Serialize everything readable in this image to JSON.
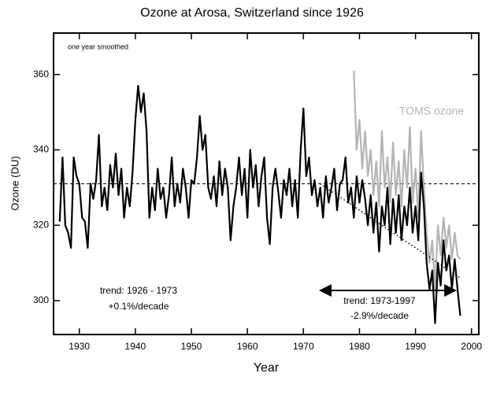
{
  "chart_data": {
    "type": "line",
    "title": "Ozone at Arosa, Switzerland since 1926",
    "x_label": "Year",
    "y_label": "Ozone (DU)",
    "xlim": [
      1925.4,
      2001.3
    ],
    "ylim": [
      291,
      371
    ],
    "xticks": [
      1930,
      1940,
      1950,
      1960,
      1970,
      1980,
      1990,
      2000
    ],
    "yticks": [
      300,
      320,
      340,
      360
    ],
    "series": [
      {
        "color": "#000000",
        "x": [
          1926.5,
          1927,
          1927.5,
          1928,
          1928.5,
          1929,
          1929.5,
          1930,
          1930.5,
          1931,
          1931.5,
          1932,
          1932.5,
          1933,
          1933.5,
          1934,
          1934.5,
          1935,
          1935.5,
          1936,
          1936.5,
          1937,
          1937.5,
          1938,
          1938.5,
          1939,
          1939.5,
          1940,
          1940.5,
          1941,
          1941.5,
          1942,
          1942.5,
          1943,
          1943.5,
          1944,
          1944.5,
          1945,
          1945.5,
          1946,
          1946.5,
          1947,
          1947.5,
          1948,
          1948.5,
          1949,
          1949.5,
          1950,
          1950.5,
          1951,
          1951.5,
          1952,
          1952.5,
          1953,
          1953.5,
          1954,
          1954.5,
          1955,
          1955.5,
          1956,
          1956.5,
          1957,
          1957.5,
          1958,
          1958.5,
          1959,
          1959.5,
          1960,
          1960.5,
          1961,
          1961.5,
          1962,
          1962.5,
          1963,
          1963.5,
          1964,
          1964.5,
          1965,
          1965.5,
          1966,
          1966.5,
          1967,
          1967.5,
          1968,
          1968.5,
          1969,
          1969.5,
          1970,
          1970.5,
          1971,
          1971.5,
          1972,
          1972.5,
          1973,
          1973.5,
          1974,
          1974.5,
          1975,
          1975.5,
          1976,
          1976.5,
          1977,
          1977.5,
          1978,
          1978.5,
          1979,
          1979.5,
          1980,
          1980.5,
          1981,
          1981.5,
          1982,
          1982.5,
          1983,
          1983.5,
          1984,
          1984.5,
          1985,
          1985.5,
          1986,
          1986.5,
          1987,
          1987.5,
          1988,
          1988.5,
          1989,
          1989.5,
          1990,
          1990.5,
          1991,
          1991.5,
          1992,
          1992.5,
          1993,
          1993.5,
          1994,
          1994.5,
          1995,
          1995.5,
          1996,
          1996.5,
          1997,
          1997.5,
          1998
        ],
        "values": [
          321,
          338,
          320,
          318,
          314,
          338,
          333,
          331,
          322,
          321,
          314,
          331,
          327,
          332,
          344,
          325,
          330,
          324,
          336,
          330,
          339,
          328,
          335,
          322,
          330,
          325,
          334,
          348,
          357,
          350,
          355,
          345,
          322,
          330,
          324,
          335,
          327,
          330,
          322,
          328,
          338,
          325,
          331,
          326,
          335,
          330,
          322,
          332,
          331,
          338,
          349,
          340,
          344,
          330,
          327,
          333,
          325,
          337,
          328,
          335,
          330,
          316,
          325,
          330,
          338,
          328,
          335,
          322,
          340,
          330,
          336,
          325,
          333,
          338,
          322,
          315,
          330,
          335,
          329,
          322,
          332,
          328,
          335,
          325,
          332,
          322,
          340,
          351,
          333,
          338,
          328,
          332,
          325,
          330,
          322,
          333,
          326,
          330,
          335,
          324,
          331,
          332,
          338,
          326,
          330,
          322,
          333,
          326,
          332,
          327,
          320,
          328,
          318,
          326,
          313,
          325,
          320,
          330,
          315,
          327,
          318,
          328,
          316,
          325,
          320,
          330,
          318,
          325,
          316,
          334,
          325,
          310,
          303,
          308,
          294,
          310,
          304,
          316,
          308,
          312,
          303,
          311,
          303,
          296
        ]
      },
      {
        "name": "TOMS ozone",
        "color": "#b4b4b4",
        "x": [
          1979,
          1979.5,
          1980,
          1980.5,
          1981,
          1981.5,
          1982,
          1982.5,
          1983,
          1983.5,
          1984,
          1984.5,
          1985,
          1985.5,
          1986,
          1986.5,
          1987,
          1987.5,
          1988,
          1988.5,
          1989,
          1989.5,
          1990,
          1990.5,
          1991,
          1991.5,
          1992,
          1992.5,
          1993,
          1993.5,
          1994,
          1994.5,
          1995,
          1995.5,
          1996,
          1996.5,
          1997,
          1997.5,
          1998
        ],
        "values": [
          361,
          340,
          348,
          335,
          345,
          333,
          340,
          328,
          337,
          325,
          345,
          330,
          338,
          326,
          342,
          328,
          337,
          325,
          340,
          330,
          346,
          326,
          335,
          322,
          345,
          330,
          318,
          310,
          316,
          303,
          320,
          312,
          322,
          314,
          320,
          311,
          318,
          312,
          311
        ]
      }
    ],
    "mean_line": 331,
    "trend_line": {
      "x": [
        1973,
        1998
      ],
      "values": [
        331,
        306
      ]
    },
    "annotations": [
      "one year smoothed",
      "trend: 1926 - 1973",
      "+0.1%/decade",
      "trend: 1973-1997",
      "-2.9%/decade"
    ]
  }
}
